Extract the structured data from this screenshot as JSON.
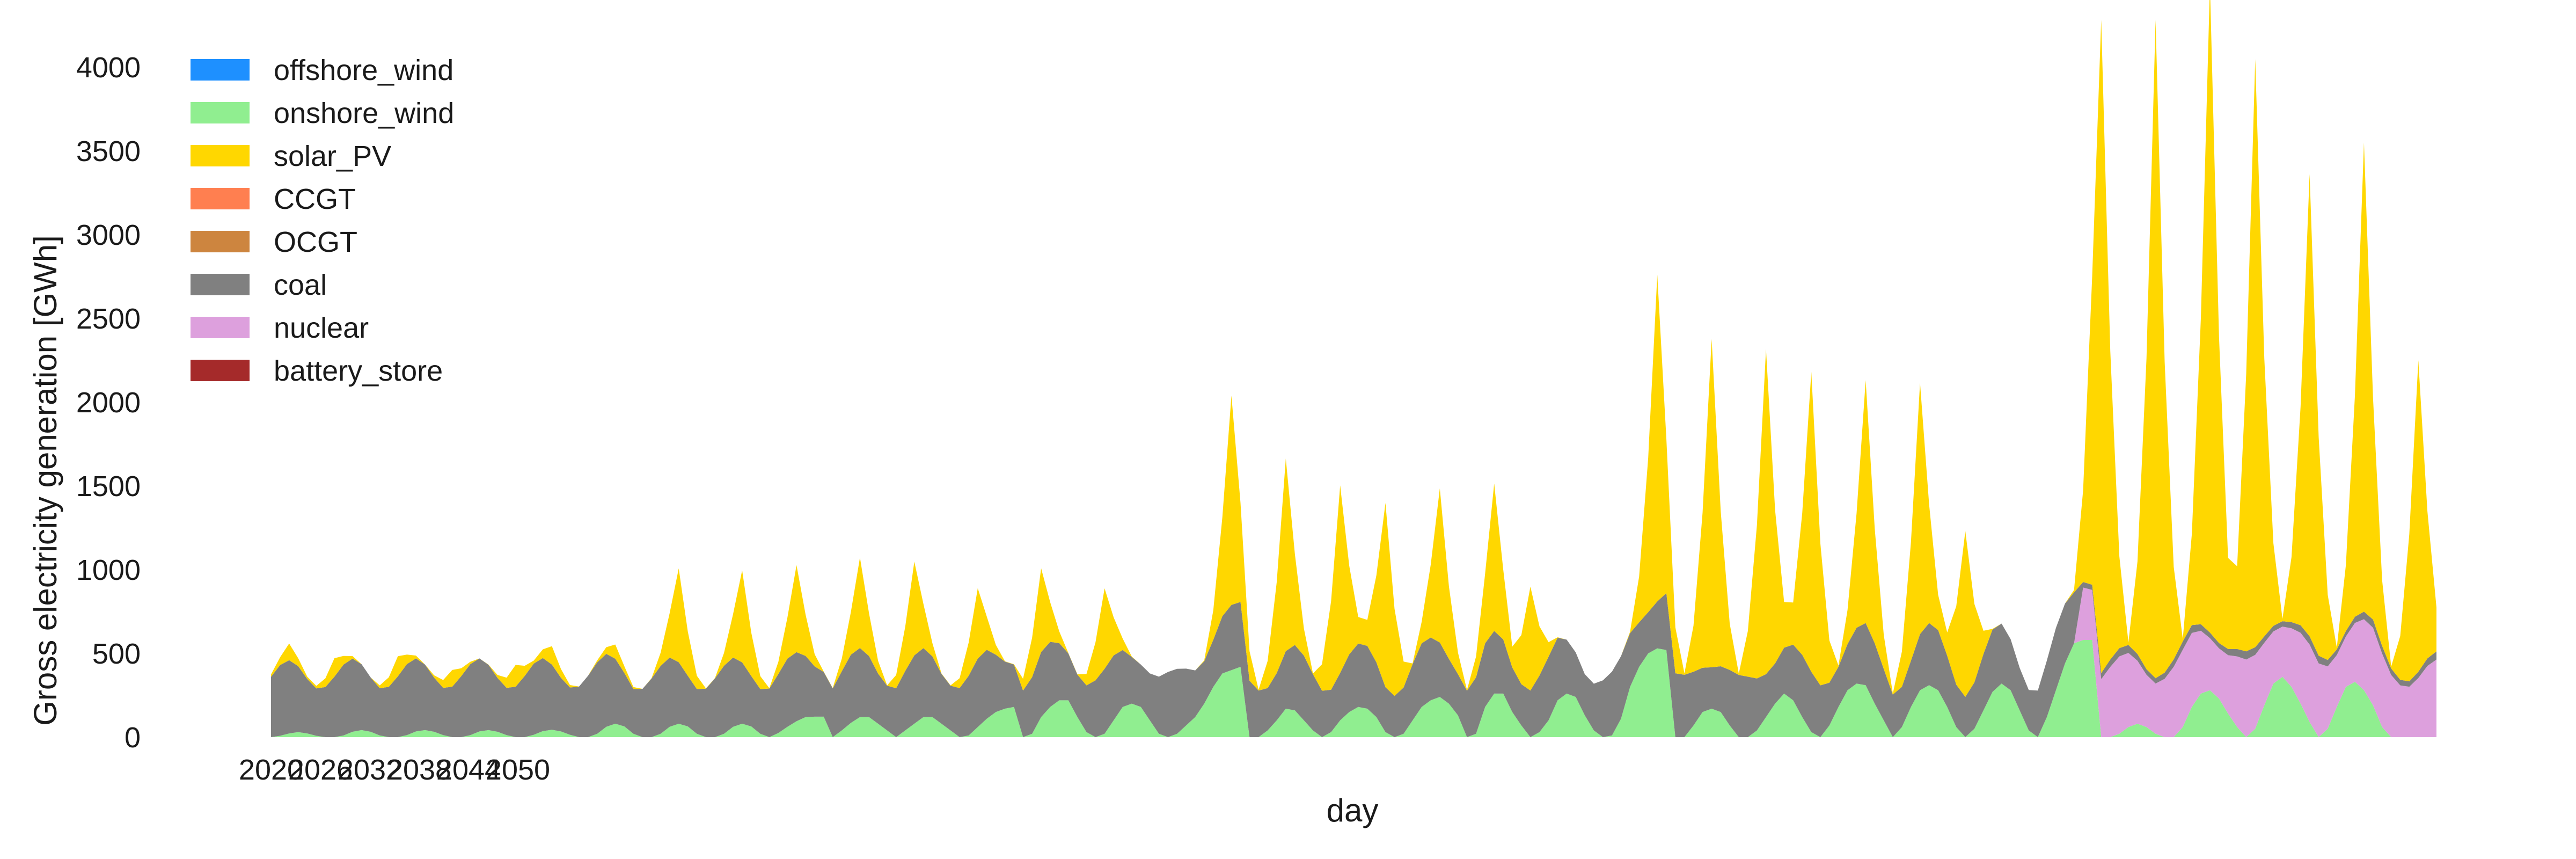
{
  "chart_data": {
    "type": "area",
    "stacked": true,
    "title": "",
    "xlabel": "day",
    "ylabel": "Gross electricity generation [GWh]",
    "ylim": [
      0,
      4000
    ],
    "yticks": [
      0,
      500,
      1000,
      1500,
      2000,
      2500,
      3000,
      3500,
      4000
    ],
    "xticks": [
      "2020",
      "2026",
      "2032",
      "2038",
      "2044",
      "2050"
    ],
    "grid": false,
    "legend_position": "top-left",
    "x_count": 240,
    "series": [
      {
        "name": "offshore_wind",
        "color": "#1e90ff",
        "values": []
      },
      {
        "name": "onshore_wind",
        "color": "#90ee90",
        "values": [
          0,
          8,
          22,
          30,
          22,
          8,
          0,
          0,
          10,
          32,
          42,
          32,
          10,
          0,
          0,
          12,
          34,
          42,
          32,
          12,
          0,
          0,
          12,
          34,
          42,
          32,
          12,
          0,
          0,
          14,
          36,
          44,
          34,
          14,
          0,
          0,
          20,
          62,
          80,
          64,
          20,
          0,
          0,
          20,
          62,
          80,
          64,
          20,
          0,
          0,
          20,
          62,
          80,
          64,
          20,
          0,
          25,
          62,
          95,
          120,
          122,
          122,
          0,
          40,
          85,
          120,
          120,
          80,
          40,
          0,
          40,
          80,
          120,
          120,
          80,
          40,
          0,
          10,
          60,
          110,
          150,
          170,
          180,
          0,
          20,
          120,
          180,
          220,
          220,
          120,
          30,
          0,
          20,
          100,
          180,
          200,
          180,
          100,
          20,
          0,
          20,
          70,
          120,
          200,
          300,
          380,
          400,
          420,
          0,
          0,
          40,
          100,
          170,
          160,
          100,
          40,
          0,
          30,
          100,
          150,
          180,
          170,
          120,
          30,
          0,
          20,
          100,
          180,
          220,
          240,
          200,
          130,
          0,
          20,
          180,
          260,
          260,
          150,
          70,
          0,
          30,
          100,
          220,
          260,
          240,
          130,
          40,
          0,
          10,
          110,
          300,
          420,
          500,
          530,
          520,
          0,
          0,
          70,
          150,
          170,
          150,
          70,
          0,
          0,
          40,
          120,
          200,
          260,
          220,
          120,
          30,
          0,
          70,
          180,
          280,
          320,
          310,
          200,
          100,
          0,
          60,
          180,
          280,
          310,
          280,
          180,
          60,
          0,
          50,
          160,
          270,
          320,
          280,
          160,
          40,
          0,
          120,
          280,
          440,
          560,
          580,
          580,
          0,
          0,
          20,
          60,
          80,
          60,
          20,
          0,
          0,
          60,
          180,
          260,
          280,
          230,
          140,
          60,
          0,
          50,
          190,
          320,
          360,
          300,
          200,
          90,
          0,
          50,
          180,
          300,
          330,
          280,
          190,
          60,
          0,
          0,
          0,
          0,
          0,
          0,
          0,
          0,
          0
        ]
      },
      {
        "name": "solar_PV",
        "color": "#ffd700",
        "values": []
      },
      {
        "name": "CCGT",
        "color": "#ff7f50",
        "values": []
      },
      {
        "name": "OCGT",
        "color": "#cd853f",
        "values": []
      },
      {
        "name": "coal",
        "color": "#808080",
        "values": []
      },
      {
        "name": "nuclear",
        "color": "#dda0dd",
        "values": []
      },
      {
        "name": "battery_store",
        "color": "#a52a2a",
        "values": []
      }
    ]
  }
}
